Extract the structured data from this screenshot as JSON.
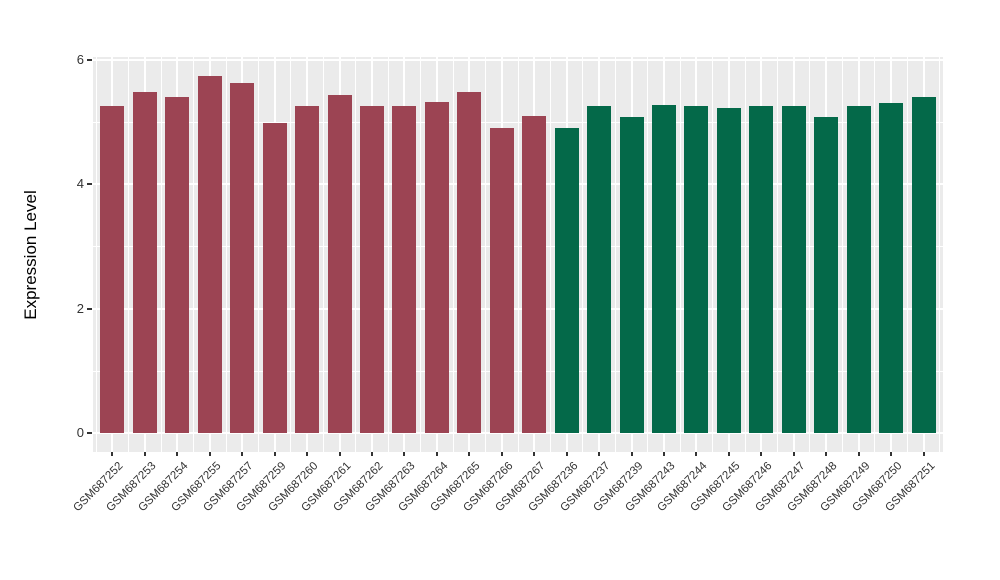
{
  "chart_data": {
    "type": "bar",
    "title": "",
    "xlabel": "",
    "ylabel": "Expression Level",
    "ylim": [
      0,
      6
    ],
    "yticks": [
      0,
      2,
      4,
      6
    ],
    "minor_gridlines_at": [
      1,
      3,
      5
    ],
    "grid": true,
    "legend_position": "none",
    "panel_background": "#EBEBEB",
    "gridline_color": "#FFFFFF",
    "axis_text_color": "#333333",
    "group_colors": {
      "left_group": "#9C4453",
      "right_group": "#046949"
    },
    "bars": [
      {
        "label": "GSM687252",
        "value": 5.25,
        "group": "left_group"
      },
      {
        "label": "GSM687253",
        "value": 5.49,
        "group": "left_group"
      },
      {
        "label": "GSM687254",
        "value": 5.4,
        "group": "left_group"
      },
      {
        "label": "GSM687255",
        "value": 5.74,
        "group": "left_group"
      },
      {
        "label": "GSM687257",
        "value": 5.62,
        "group": "left_group"
      },
      {
        "label": "GSM687259",
        "value": 4.98,
        "group": "left_group"
      },
      {
        "label": "GSM687260",
        "value": 5.25,
        "group": "left_group"
      },
      {
        "label": "GSM687261",
        "value": 5.43,
        "group": "left_group"
      },
      {
        "label": "GSM687262",
        "value": 5.26,
        "group": "left_group"
      },
      {
        "label": "GSM687263",
        "value": 5.26,
        "group": "left_group"
      },
      {
        "label": "GSM687264",
        "value": 5.32,
        "group": "left_group"
      },
      {
        "label": "GSM687265",
        "value": 5.49,
        "group": "left_group"
      },
      {
        "label": "GSM687266",
        "value": 4.91,
        "group": "left_group"
      },
      {
        "label": "GSM687267",
        "value": 5.1,
        "group": "left_group"
      },
      {
        "label": "GSM687236",
        "value": 4.91,
        "group": "right_group"
      },
      {
        "label": "GSM687237",
        "value": 5.26,
        "group": "right_group"
      },
      {
        "label": "GSM687239",
        "value": 5.08,
        "group": "right_group"
      },
      {
        "label": "GSM687243",
        "value": 5.28,
        "group": "right_group"
      },
      {
        "label": "GSM687244",
        "value": 5.26,
        "group": "right_group"
      },
      {
        "label": "GSM687245",
        "value": 5.23,
        "group": "right_group"
      },
      {
        "label": "GSM687246",
        "value": 5.26,
        "group": "right_group"
      },
      {
        "label": "GSM687247",
        "value": 5.26,
        "group": "right_group"
      },
      {
        "label": "GSM687248",
        "value": 5.08,
        "group": "right_group"
      },
      {
        "label": "GSM687249",
        "value": 5.26,
        "group": "right_group"
      },
      {
        "label": "GSM687250",
        "value": 5.3,
        "group": "right_group"
      },
      {
        "label": "GSM687251",
        "value": 5.4,
        "group": "right_group"
      }
    ]
  }
}
